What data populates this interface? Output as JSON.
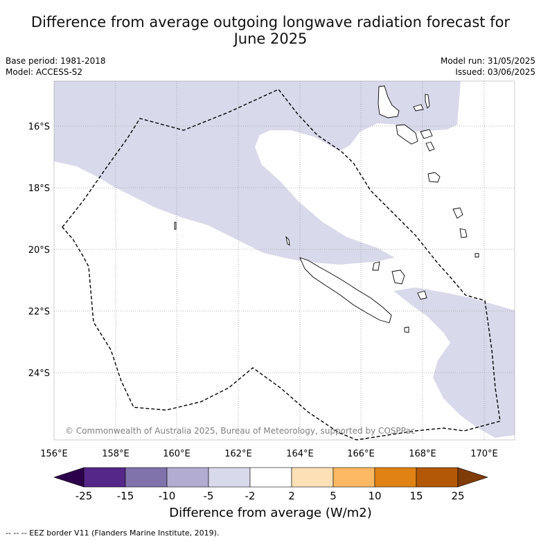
{
  "title_line1": "Difference from average outgoing longwave radiation forecast for",
  "title_line2": "June 2025",
  "base_period": "Base period: 1981-2018",
  "model": "Model: ACCESS-S2",
  "model_run": "Model run: 31/05/2025",
  "issued": "Issued: 03/06/2025",
  "copyright": "© Commonwealth of Australia 2025, Bureau of Meteorology, supported by COSPPac",
  "lat_labels": [
    "16°S",
    "18°S",
    "20°S",
    "22°S",
    "24°S"
  ],
  "lon_labels": [
    "156°E",
    "158°E",
    "160°E",
    "162°E",
    "164°E",
    "166°E",
    "168°E",
    "170°E"
  ],
  "colorbar": {
    "label": "Difference from average (W/m2)",
    "ticks": [
      "-25",
      "-15",
      "-10",
      "-5",
      "-2",
      "2",
      "5",
      "10",
      "15",
      "25"
    ],
    "colors": [
      "#2d004b",
      "#542788",
      "#8073ac",
      "#b2abd2",
      "#d8daeb",
      "#ffffff",
      "#fee0b6",
      "#fdb863",
      "#e08214",
      "#b35806",
      "#7f3b08"
    ]
  },
  "anomaly_fill_color": "#d8daeb",
  "footnote": "--  --  -- EEZ border V11 (Flanders Marine Institute, 2019)."
}
